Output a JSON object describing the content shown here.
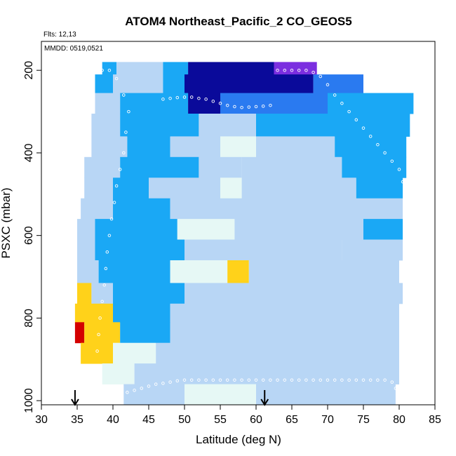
{
  "chart_data": {
    "type": "heatmap",
    "title": "ATOM4 Northeast_Pacific_2 CO_GEOS5",
    "annotations": {
      "flights": "Flts: 12,13",
      "dates": "MMDD: 0519,0521"
    },
    "xlabel": "Latitude (deg N)",
    "ylabel": "PSXC (mbar)",
    "xlim": [
      30,
      85
    ],
    "ylim": [
      1010,
      130
    ],
    "x_ticks": [
      "30",
      "35",
      "40",
      "45",
      "50",
      "55",
      "60",
      "65",
      "70",
      "75",
      "80",
      "85"
    ],
    "y_ticks": [
      "200",
      "400",
      "600",
      "800",
      "1000"
    ],
    "arrow_latitudes": [
      34.7,
      61.2
    ],
    "colors": {
      "very_low": "#7b2ee0",
      "low": "#0a0a9a",
      "mid_low": "#2a7af0",
      "mid": "#1aa8f5",
      "background": "#b8d6f5",
      "mid_high": "#e6f8f5",
      "high": "#ffd21a",
      "very_high": "#d40000"
    },
    "bands": [
      {
        "p": [
          180,
          210
        ],
        "lat": [
          38.5,
          68.5
        ],
        "segments": [
          {
            "lat": [
              38.5,
              40.5
            ],
            "level": "mid"
          },
          {
            "lat": [
              40.5,
              47
            ],
            "level": "background"
          },
          {
            "lat": [
              47,
              50.5
            ],
            "level": "mid"
          },
          {
            "lat": [
              50.5,
              62.5
            ],
            "level": "low"
          },
          {
            "lat": [
              62.5,
              68.5
            ],
            "level": "very_low"
          }
        ]
      },
      {
        "p": [
          210,
          255
        ],
        "lat": [
          37.5,
          75
        ],
        "segments": [
          {
            "lat": [
              37.5,
              40
            ],
            "level": "mid"
          },
          {
            "lat": [
              40,
              47
            ],
            "level": "background"
          },
          {
            "lat": [
              47,
              50
            ],
            "level": "mid"
          },
          {
            "lat": [
              50,
              68
            ],
            "level": "low"
          },
          {
            "lat": [
              68,
              75
            ],
            "level": "mid_low"
          }
        ]
      },
      {
        "p": [
          255,
          305
        ],
        "lat": [
          37.5,
          82
        ],
        "segments": [
          {
            "lat": [
              37.5,
              41
            ],
            "level": "background"
          },
          {
            "lat": [
              41,
              50.5
            ],
            "level": "mid"
          },
          {
            "lat": [
              50.5,
              55
            ],
            "level": "low"
          },
          {
            "lat": [
              55,
              70
            ],
            "level": "mid_low"
          },
          {
            "lat": [
              70,
              82
            ],
            "level": "mid"
          }
        ]
      },
      {
        "p": [
          305,
          360
        ],
        "lat": [
          37,
          81.5
        ],
        "segments": [
          {
            "lat": [
              37,
              41
            ],
            "level": "background"
          },
          {
            "lat": [
              41,
              52
            ],
            "level": "mid"
          },
          {
            "lat": [
              52,
              60
            ],
            "level": "background"
          },
          {
            "lat": [
              60,
              81.5
            ],
            "level": "mid"
          }
        ]
      },
      {
        "p": [
          360,
          410
        ],
        "lat": [
          37,
          81
        ],
        "segments": [
          {
            "lat": [
              37,
              42
            ],
            "level": "background"
          },
          {
            "lat": [
              42,
              48
            ],
            "level": "mid"
          },
          {
            "lat": [
              48,
              55
            ],
            "level": "background"
          },
          {
            "lat": [
              55,
              60
            ],
            "level": "mid_high"
          },
          {
            "lat": [
              60,
              71
            ],
            "level": "background"
          },
          {
            "lat": [
              71,
              81
            ],
            "level": "mid"
          }
        ]
      },
      {
        "p": [
          410,
          460
        ],
        "lat": [
          36,
          81
        ],
        "segments": [
          {
            "lat": [
              36,
              41
            ],
            "level": "background"
          },
          {
            "lat": [
              41,
              52
            ],
            "level": "mid"
          },
          {
            "lat": [
              52,
              58
            ],
            "level": "background"
          },
          {
            "lat": [
              58,
              72
            ],
            "level": "background"
          },
          {
            "lat": [
              72,
              81
            ],
            "level": "mid"
          }
        ]
      },
      {
        "p": [
          460,
          510
        ],
        "lat": [
          36,
          80.5
        ],
        "segments": [
          {
            "lat": [
              36,
              40
            ],
            "level": "background"
          },
          {
            "lat": [
              40,
              45
            ],
            "level": "mid"
          },
          {
            "lat": [
              45,
              55
            ],
            "level": "background"
          },
          {
            "lat": [
              55,
              58
            ],
            "level": "mid_high"
          },
          {
            "lat": [
              58,
              74
            ],
            "level": "background"
          },
          {
            "lat": [
              74,
              80.5
            ],
            "level": "mid"
          }
        ]
      },
      {
        "p": [
          510,
          560
        ],
        "lat": [
          35.5,
          80.5
        ],
        "segments": [
          {
            "lat": [
              35.5,
              40
            ],
            "level": "background"
          },
          {
            "lat": [
              40,
              48
            ],
            "level": "mid"
          },
          {
            "lat": [
              48,
              60
            ],
            "level": "background"
          },
          {
            "lat": [
              60,
              80.5
            ],
            "level": "background"
          }
        ]
      },
      {
        "p": [
          560,
          610
        ],
        "lat": [
          35,
          80.5
        ],
        "segments": [
          {
            "lat": [
              35,
              37.5
            ],
            "level": "background"
          },
          {
            "lat": [
              37.5,
              49
            ],
            "level": "mid"
          },
          {
            "lat": [
              49,
              57
            ],
            "level": "mid_high"
          },
          {
            "lat": [
              57,
              75
            ],
            "level": "background"
          },
          {
            "lat": [
              75,
              80.5
            ],
            "level": "mid"
          }
        ]
      },
      {
        "p": [
          610,
          660
        ],
        "lat": [
          35,
          80.5
        ],
        "segments": [
          {
            "lat": [
              35,
              37.5
            ],
            "level": "background"
          },
          {
            "lat": [
              37.5,
              50
            ],
            "level": "mid"
          },
          {
            "lat": [
              50,
              72
            ],
            "level": "background"
          },
          {
            "lat": [
              72,
              80.5
            ],
            "level": "background"
          }
        ]
      },
      {
        "p": [
          660,
          715
        ],
        "lat": [
          35,
          80
        ],
        "segments": [
          {
            "lat": [
              35,
              38
            ],
            "level": "background"
          },
          {
            "lat": [
              38,
              48
            ],
            "level": "mid"
          },
          {
            "lat": [
              48,
              56
            ],
            "level": "mid_high"
          },
          {
            "lat": [
              56,
              59
            ],
            "level": "high"
          },
          {
            "lat": [
              59,
              80
            ],
            "level": "background"
          }
        ]
      },
      {
        "p": [
          715,
          765
        ],
        "lat": [
          35,
          80.5
        ],
        "segments": [
          {
            "lat": [
              35,
              37
            ],
            "level": "high"
          },
          {
            "lat": [
              37,
              40
            ],
            "level": "background"
          },
          {
            "lat": [
              40,
              50
            ],
            "level": "mid"
          },
          {
            "lat": [
              50,
              80.5
            ],
            "level": "background"
          }
        ]
      },
      {
        "p": [
          765,
          810
        ],
        "lat": [
          34.7,
          80
        ],
        "segments": [
          {
            "lat": [
              34.7,
              40
            ],
            "level": "high"
          },
          {
            "lat": [
              40,
              48
            ],
            "level": "mid"
          },
          {
            "lat": [
              48,
              80
            ],
            "level": "background"
          }
        ]
      },
      {
        "p": [
          810,
          860
        ],
        "lat": [
          34.7,
          80
        ],
        "segments": [
          {
            "lat": [
              34.7,
              36
            ],
            "level": "very_high"
          },
          {
            "lat": [
              36,
              41
            ],
            "level": "high"
          },
          {
            "lat": [
              41,
              48
            ],
            "level": "mid"
          },
          {
            "lat": [
              48,
              80
            ],
            "level": "background"
          }
        ]
      },
      {
        "p": [
          860,
          910
        ],
        "lat": [
          35.5,
          80
        ],
        "segments": [
          {
            "lat": [
              35.5,
              40
            ],
            "level": "high"
          },
          {
            "lat": [
              40,
              46
            ],
            "level": "mid_high"
          },
          {
            "lat": [
              46,
              80
            ],
            "level": "background"
          }
        ]
      },
      {
        "p": [
          910,
          960
        ],
        "lat": [
          38.5,
          80
        ],
        "segments": [
          {
            "lat": [
              38.5,
              43
            ],
            "level": "mid_high"
          },
          {
            "lat": [
              43,
              80
            ],
            "level": "background"
          }
        ]
      },
      {
        "p": [
          960,
          1010
        ],
        "lat": [
          41.5,
          79.5
        ],
        "segments": [
          {
            "lat": [
              41.5,
              50
            ],
            "level": "background"
          },
          {
            "lat": [
              50,
              60
            ],
            "level": "mid_high"
          },
          {
            "lat": [
              60,
              79.5
            ],
            "level": "background"
          }
        ]
      }
    ],
    "flight_tracks": [
      {
        "lat": [
          38.5,
          39.5,
          40.5,
          41.5,
          42.2,
          41.8,
          41.5,
          41,
          40.5,
          40.2,
          39.8,
          39.5,
          39.2,
          39,
          38.8,
          38.5,
          38.2,
          38,
          37.8,
          37.5
        ],
        "p": [
          200,
          200,
          220,
          260,
          300,
          350,
          400,
          440,
          480,
          520,
          560,
          600,
          640,
          680,
          720,
          760,
          800,
          840,
          880,
          920
        ]
      },
      {
        "lat": [
          47,
          48,
          49,
          50,
          51,
          52,
          53,
          54,
          55,
          56,
          57,
          58,
          59,
          60,
          61,
          62,
          63,
          64,
          65,
          66,
          67,
          68,
          69,
          70,
          71,
          72,
          73,
          74,
          75,
          76,
          77,
          78,
          79,
          80,
          80.5
        ],
        "p": [
          270,
          268,
          266,
          265,
          265,
          268,
          270,
          275,
          280,
          285,
          288,
          290,
          289,
          288,
          287,
          285,
          200,
          200,
          200,
          200,
          200,
          205,
          215,
          235,
          260,
          280,
          300,
          320,
          340,
          360,
          380,
          400,
          420,
          440,
          470
        ]
      },
      {
        "lat": [
          42,
          43,
          44,
          45,
          46,
          47,
          48,
          49,
          50,
          51,
          52,
          53,
          54,
          55,
          56,
          57,
          58,
          59,
          60,
          61,
          62,
          63,
          64,
          65,
          66,
          67,
          68,
          69,
          70,
          71,
          72,
          73,
          74,
          75,
          76,
          77,
          78,
          79,
          79.5
        ],
        "p": [
          980,
          975,
          970,
          965,
          960,
          958,
          955,
          952,
          950,
          950,
          950,
          950,
          950,
          950,
          950,
          950,
          950,
          950,
          950,
          950,
          950,
          950,
          950,
          950,
          950,
          950,
          950,
          950,
          950,
          950,
          950,
          950,
          950,
          950,
          950,
          950,
          950,
          955,
          970
        ]
      }
    ]
  }
}
